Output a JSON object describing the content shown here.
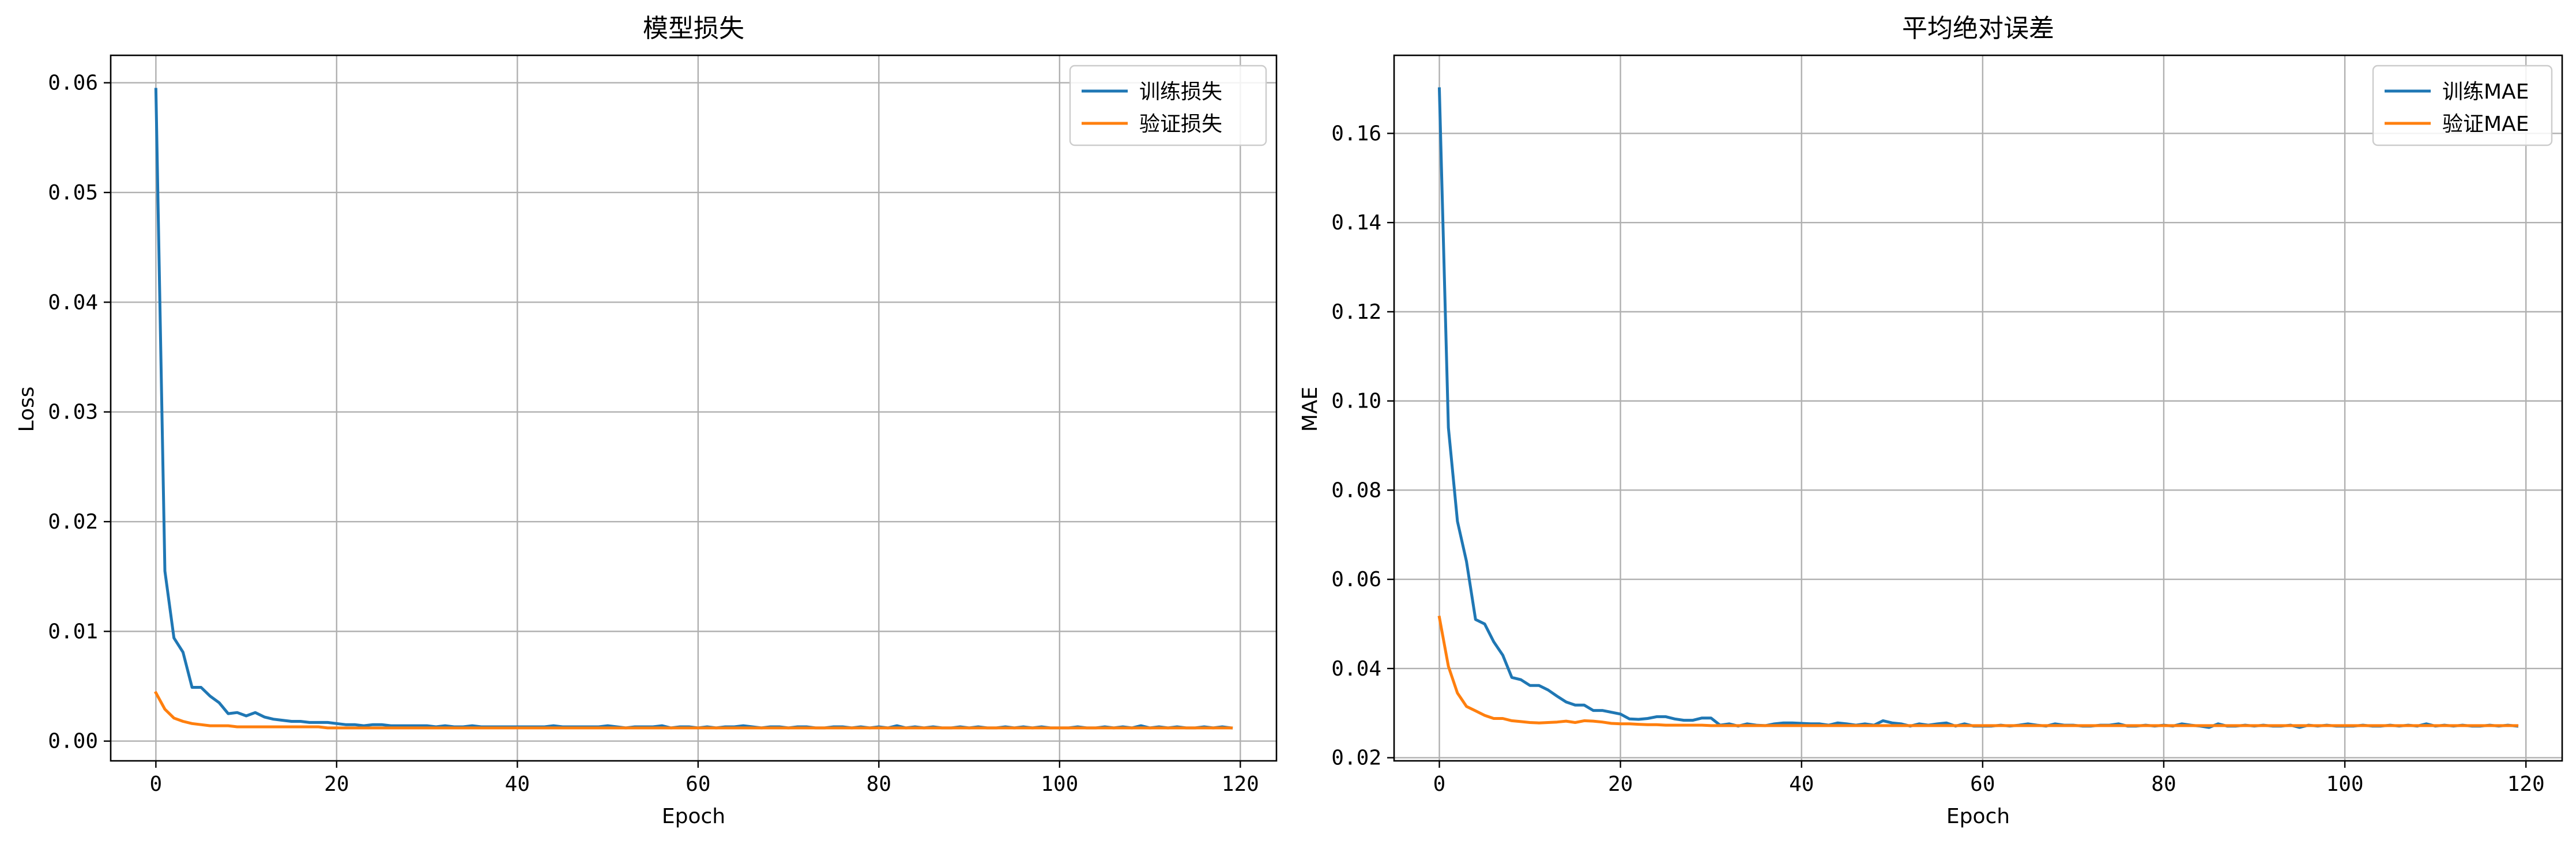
{
  "chart_data": [
    {
      "type": "line",
      "title": "模型损失",
      "xlabel": "Epoch",
      "ylabel": "Loss",
      "xlim": [
        -5,
        124
      ],
      "ylim": [
        -0.0018,
        0.0625
      ],
      "xticks": [
        0,
        20,
        40,
        60,
        80,
        100,
        120
      ],
      "yticks": [
        0.0,
        0.01,
        0.02,
        0.03,
        0.04,
        0.05,
        0.06
      ],
      "ytick_labels": [
        "0.00",
        "0.01",
        "0.02",
        "0.03",
        "0.04",
        "0.05",
        "0.06"
      ],
      "grid": true,
      "legend_position": "top-right",
      "x": [
        0,
        1,
        2,
        3,
        4,
        5,
        6,
        7,
        8,
        9,
        10,
        11,
        12,
        13,
        14,
        15,
        16,
        17,
        18,
        19,
        20,
        21,
        22,
        23,
        24,
        25,
        26,
        27,
        28,
        29,
        30,
        31,
        32,
        33,
        34,
        35,
        36,
        37,
        38,
        39,
        40,
        41,
        42,
        43,
        44,
        45,
        46,
        47,
        48,
        49,
        50,
        51,
        52,
        53,
        54,
        55,
        56,
        57,
        58,
        59,
        60,
        61,
        62,
        63,
        64,
        65,
        66,
        67,
        68,
        69,
        70,
        71,
        72,
        73,
        74,
        75,
        76,
        77,
        78,
        79,
        80,
        81,
        82,
        83,
        84,
        85,
        86,
        87,
        88,
        89,
        90,
        91,
        92,
        93,
        94,
        95,
        96,
        97,
        98,
        99,
        100,
        101,
        102,
        103,
        104,
        105,
        106,
        107,
        108,
        109,
        110,
        111,
        112,
        113,
        114,
        115,
        116,
        117,
        118,
        119
      ],
      "series": [
        {
          "name": "训练损失",
          "color": "#1f77b4",
          "values": [
            0.0594,
            0.0155,
            0.0094,
            0.0081,
            0.0049,
            0.0049,
            0.0041,
            0.0035,
            0.0025,
            0.0026,
            0.0023,
            0.0026,
            0.0022,
            0.002,
            0.0019,
            0.0018,
            0.0018,
            0.0017,
            0.0017,
            0.0017,
            0.0016,
            0.0015,
            0.0015,
            0.0014,
            0.0015,
            0.0015,
            0.0014,
            0.0014,
            0.0014,
            0.0014,
            0.0014,
            0.0013,
            0.0014,
            0.0013,
            0.0013,
            0.0014,
            0.0013,
            0.0013,
            0.0013,
            0.0013,
            0.0013,
            0.0013,
            0.0013,
            0.0013,
            0.0014,
            0.0013,
            0.0013,
            0.0013,
            0.0013,
            0.0013,
            0.0014,
            0.0013,
            0.0012,
            0.0013,
            0.0013,
            0.0013,
            0.0014,
            0.0012,
            0.0013,
            0.0013,
            0.0012,
            0.0013,
            0.0012,
            0.0013,
            0.0013,
            0.0014,
            0.0013,
            0.0012,
            0.0013,
            0.0013,
            0.0012,
            0.0013,
            0.0013,
            0.0012,
            0.0012,
            0.0013,
            0.0013,
            0.0012,
            0.0013,
            0.0012,
            0.0013,
            0.0012,
            0.0014,
            0.0012,
            0.0013,
            0.0012,
            0.0013,
            0.0012,
            0.0012,
            0.0013,
            0.0012,
            0.0013,
            0.0012,
            0.0012,
            0.0013,
            0.0012,
            0.0013,
            0.0012,
            0.0013,
            0.0012,
            0.0012,
            0.0012,
            0.0013,
            0.0012,
            0.0012,
            0.0013,
            0.0012,
            0.0013,
            0.0012,
            0.0014,
            0.0012,
            0.0013,
            0.0012,
            0.0013,
            0.0012,
            0.0012,
            0.0013,
            0.0012,
            0.0013,
            0.0012
          ]
        },
        {
          "name": "验证损失",
          "color": "#ff7f0e",
          "values": [
            0.0044,
            0.0029,
            0.0021,
            0.0018,
            0.0016,
            0.0015,
            0.0014,
            0.0014,
            0.0014,
            0.0013,
            0.0013,
            0.0013,
            0.0013,
            0.0013,
            0.0013,
            0.0013,
            0.0013,
            0.0013,
            0.0013,
            0.0012,
            0.0012,
            0.0012,
            0.0012,
            0.0012,
            0.0012,
            0.0012,
            0.0012,
            0.0012,
            0.0012,
            0.0012,
            0.0012,
            0.0012,
            0.0012,
            0.0012,
            0.0012,
            0.0012,
            0.0012,
            0.0012,
            0.0012,
            0.0012,
            0.0012,
            0.0012,
            0.0012,
            0.0012,
            0.0012,
            0.0012,
            0.0012,
            0.0012,
            0.0012,
            0.0012,
            0.0012,
            0.0012,
            0.0012,
            0.0012,
            0.0012,
            0.0012,
            0.0012,
            0.0012,
            0.0012,
            0.0012,
            0.0012,
            0.0012,
            0.0012,
            0.0012,
            0.0012,
            0.0012,
            0.0012,
            0.0012,
            0.0012,
            0.0012,
            0.0012,
            0.0012,
            0.0012,
            0.0012,
            0.0012,
            0.0012,
            0.0012,
            0.0012,
            0.0012,
            0.0012,
            0.0012,
            0.0012,
            0.0012,
            0.0012,
            0.0012,
            0.0012,
            0.0012,
            0.0012,
            0.0012,
            0.0012,
            0.0012,
            0.0012,
            0.0012,
            0.0012,
            0.0012,
            0.0012,
            0.0012,
            0.0012,
            0.0012,
            0.0012,
            0.0012,
            0.0012,
            0.0012,
            0.0012,
            0.0012,
            0.0012,
            0.0012,
            0.0012,
            0.0012,
            0.0012,
            0.0012,
            0.0012,
            0.0012,
            0.0012,
            0.0012,
            0.0012,
            0.0012,
            0.0012,
            0.0012,
            0.0012
          ]
        }
      ]
    },
    {
      "type": "line",
      "title": "平均绝对误差",
      "xlabel": "Epoch",
      "ylabel": "MAE",
      "xlim": [
        -5,
        124
      ],
      "ylim": [
        0.0193,
        0.1775
      ],
      "xticks": [
        0,
        20,
        40,
        60,
        80,
        100,
        120
      ],
      "yticks": [
        0.02,
        0.04,
        0.06,
        0.08,
        0.1,
        0.12,
        0.14,
        0.16
      ],
      "ytick_labels": [
        "0.02",
        "0.04",
        "0.06",
        "0.08",
        "0.10",
        "0.12",
        "0.14",
        "0.16"
      ],
      "grid": true,
      "legend_position": "top-right",
      "x": [
        0,
        1,
        2,
        3,
        4,
        5,
        6,
        7,
        8,
        9,
        10,
        11,
        12,
        13,
        14,
        15,
        16,
        17,
        18,
        19,
        20,
        21,
        22,
        23,
        24,
        25,
        26,
        27,
        28,
        29,
        30,
        31,
        32,
        33,
        34,
        35,
        36,
        37,
        38,
        39,
        40,
        41,
        42,
        43,
        44,
        45,
        46,
        47,
        48,
        49,
        50,
        51,
        52,
        53,
        54,
        55,
        56,
        57,
        58,
        59,
        60,
        61,
        62,
        63,
        64,
        65,
        66,
        67,
        68,
        69,
        70,
        71,
        72,
        73,
        74,
        75,
        76,
        77,
        78,
        79,
        80,
        81,
        82,
        83,
        84,
        85,
        86,
        87,
        88,
        89,
        90,
        91,
        92,
        93,
        94,
        95,
        96,
        97,
        98,
        99,
        100,
        101,
        102,
        103,
        104,
        105,
        106,
        107,
        108,
        109,
        110,
        111,
        112,
        113,
        114,
        115,
        116,
        117,
        118,
        119
      ],
      "series": [
        {
          "name": "训练MAE",
          "color": "#1f77b4",
          "values": [
            0.17,
            0.094,
            0.073,
            0.064,
            0.051,
            0.05,
            0.046,
            0.043,
            0.038,
            0.0375,
            0.0362,
            0.0362,
            0.0352,
            0.0338,
            0.0325,
            0.0318,
            0.0318,
            0.0306,
            0.0306,
            0.0302,
            0.0298,
            0.0287,
            0.0286,
            0.0288,
            0.0292,
            0.0292,
            0.0287,
            0.0284,
            0.0284,
            0.0289,
            0.0289,
            0.0273,
            0.0276,
            0.0271,
            0.0276,
            0.0273,
            0.0272,
            0.0276,
            0.0278,
            0.0278,
            0.0277,
            0.0276,
            0.0276,
            0.0273,
            0.0278,
            0.0276,
            0.0273,
            0.0276,
            0.0273,
            0.0283,
            0.0278,
            0.0276,
            0.0271,
            0.0276,
            0.0273,
            0.0276,
            0.0278,
            0.0271,
            0.0276,
            0.0271,
            0.0271,
            0.0271,
            0.0273,
            0.0271,
            0.0273,
            0.0276,
            0.0273,
            0.0271,
            0.0276,
            0.0273,
            0.0273,
            0.0271,
            0.0271,
            0.0273,
            0.0273,
            0.0276,
            0.0271,
            0.0271,
            0.0273,
            0.0271,
            0.0273,
            0.0271,
            0.0276,
            0.0273,
            0.0271,
            0.0268,
            0.0276,
            0.0271,
            0.0271,
            0.0273,
            0.0271,
            0.0273,
            0.0271,
            0.0271,
            0.0273,
            0.0268,
            0.0273,
            0.0271,
            0.0273,
            0.0271,
            0.0271,
            0.0271,
            0.0273,
            0.0271,
            0.0271,
            0.0273,
            0.0271,
            0.0273,
            0.0271,
            0.0276,
            0.0271,
            0.0273,
            0.0271,
            0.0273,
            0.0271,
            0.0271,
            0.0273,
            0.0271,
            0.0273,
            0.0271
          ]
        },
        {
          "name": "验证MAE",
          "color": "#ff7f0e",
          "values": [
            0.0515,
            0.0405,
            0.0345,
            0.0315,
            0.0305,
            0.0295,
            0.0288,
            0.0288,
            0.0283,
            0.0281,
            0.0279,
            0.0278,
            0.0279,
            0.028,
            0.0282,
            0.0279,
            0.0283,
            0.0282,
            0.028,
            0.0277,
            0.0276,
            0.0276,
            0.0275,
            0.0274,
            0.0274,
            0.0273,
            0.0273,
            0.0273,
            0.0273,
            0.0273,
            0.0272,
            0.0272,
            0.0272,
            0.0272,
            0.0272,
            0.0272,
            0.0272,
            0.0272,
            0.0272,
            0.0272,
            0.0272,
            0.0272,
            0.0272,
            0.0272,
            0.0272,
            0.0272,
            0.0272,
            0.0272,
            0.0272,
            0.0272,
            0.0272,
            0.0272,
            0.0272,
            0.0272,
            0.0272,
            0.0272,
            0.0272,
            0.0272,
            0.0272,
            0.0272,
            0.0272,
            0.0272,
            0.0272,
            0.0272,
            0.0272,
            0.0272,
            0.0272,
            0.0272,
            0.0272,
            0.0272,
            0.0272,
            0.0272,
            0.0272,
            0.0272,
            0.0272,
            0.0272,
            0.0272,
            0.0272,
            0.0272,
            0.0272,
            0.0272,
            0.0272,
            0.0272,
            0.0272,
            0.0272,
            0.0272,
            0.0272,
            0.0272,
            0.0272,
            0.0272,
            0.0272,
            0.0272,
            0.0272,
            0.0272,
            0.0272,
            0.0272,
            0.0272,
            0.0272,
            0.0272,
            0.0272,
            0.0272,
            0.0272,
            0.0272,
            0.0272,
            0.0272,
            0.0272,
            0.0272,
            0.0272,
            0.0272,
            0.0272,
            0.0272,
            0.0272,
            0.0272,
            0.0272,
            0.0272,
            0.0272,
            0.0272,
            0.0272,
            0.0272,
            0.0272
          ]
        }
      ]
    }
  ]
}
